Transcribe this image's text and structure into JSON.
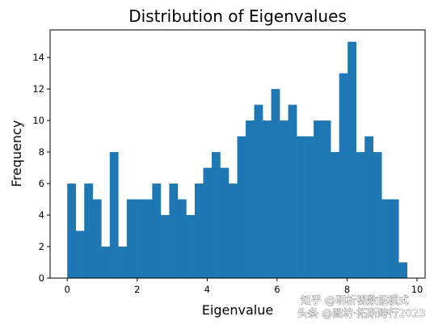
{
  "chart_data": {
    "type": "bar",
    "title": "Distribution of Eigenvalues",
    "xlabel": "Eigenvalue",
    "ylabel": "Frequency",
    "xlim": [
      -0.49,
      10.23
    ],
    "ylim": [
      0,
      15.75
    ],
    "bin_start": 0.0,
    "bin_width": 0.2429,
    "values": [
      6,
      3,
      6,
      5,
      2,
      8,
      2,
      5,
      5,
      5,
      6,
      4,
      6,
      5,
      4,
      6,
      7,
      8,
      7,
      6,
      9,
      10,
      11,
      10,
      12,
      10,
      11,
      9,
      9,
      10,
      10,
      8,
      13,
      15,
      8,
      9,
      8,
      5,
      5,
      1
    ],
    "xticks": [
      0,
      2,
      4,
      6,
      8,
      10
    ],
    "yticks": [
      0,
      2,
      4,
      6,
      8,
      10,
      12,
      14
    ],
    "bar_color": "#1f77b4",
    "grid": false
  },
  "watermark": {
    "line1": "知乎 @明析视数据模式",
    "line2": "头条 @图坊·拓斯跨行2023"
  }
}
